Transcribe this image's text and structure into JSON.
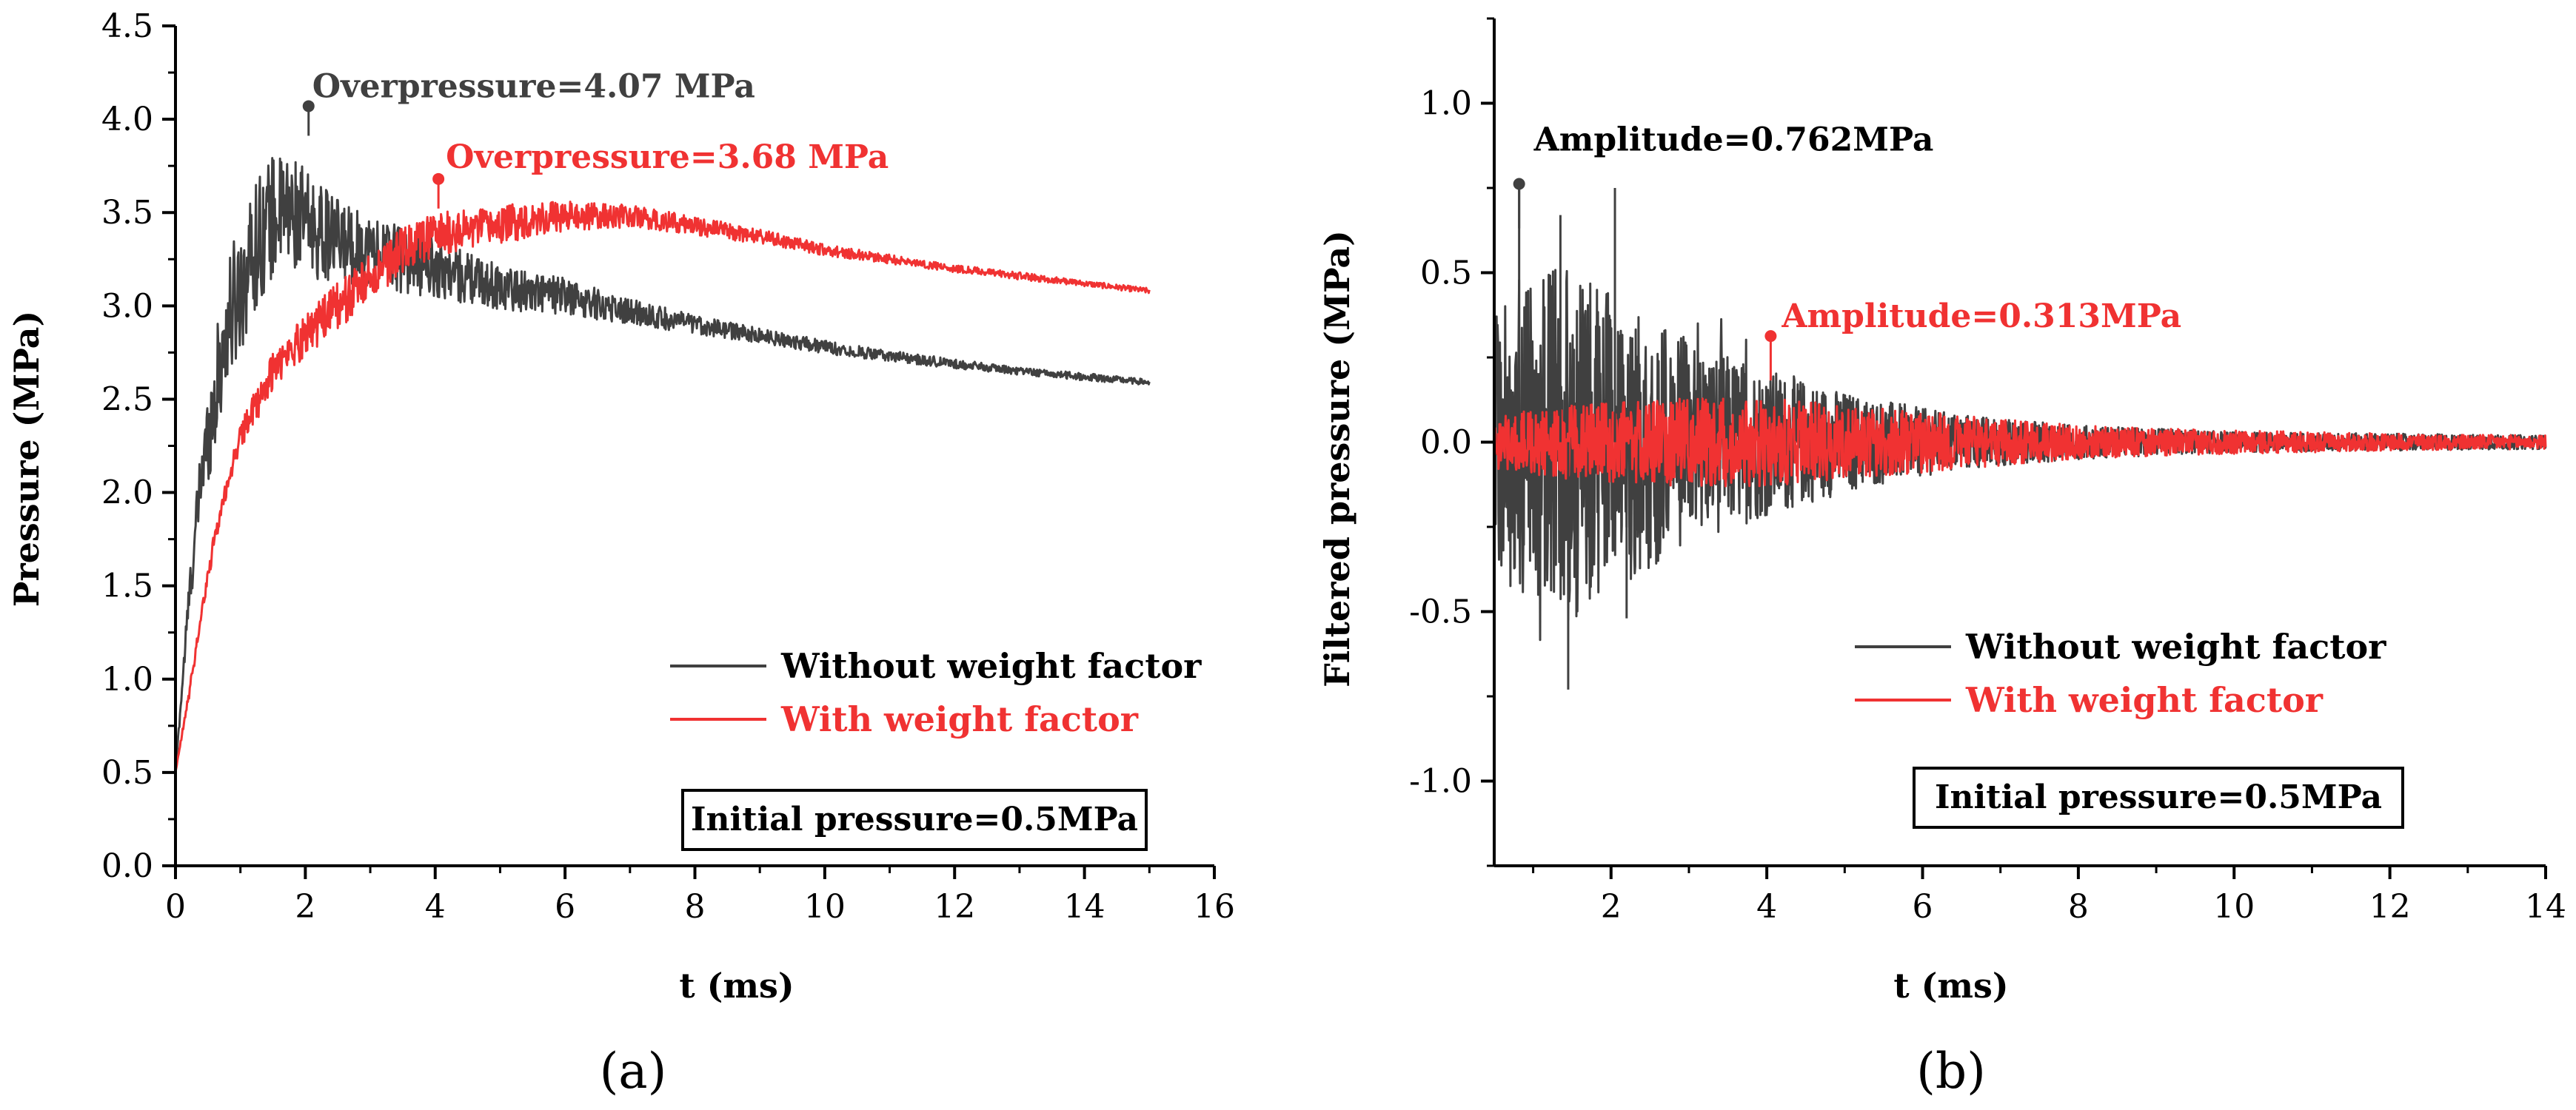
{
  "colors": {
    "series_without": "#404040",
    "series_with": "#f03232",
    "axis": "#000000"
  },
  "chart_data": [
    {
      "type": "line",
      "panel_label": "(a)",
      "xlabel": "t (ms)",
      "ylabel": "Pressure (MPa)",
      "xlim": [
        0,
        16
      ],
      "ylim": [
        0,
        4.5
      ],
      "xticks": [
        "0",
        "2",
        "4",
        "6",
        "8",
        "10",
        "12",
        "14",
        "16"
      ],
      "yticks": [
        "0.0",
        "0.5",
        "1.0",
        "1.5",
        "2.0",
        "2.5",
        "3.0",
        "3.5",
        "4.0",
        "4.5"
      ],
      "series": [
        {
          "name": "Without weight factor",
          "color": "#404040",
          "x": [
            0,
            0.2,
            0.4,
            0.6,
            0.8,
            1.0,
            1.2,
            1.4,
            1.6,
            1.8,
            2.0,
            2.2,
            2.5,
            3.0,
            3.5,
            4.0,
            5.0,
            6.0,
            7.0,
            8.0,
            9.0,
            10.0,
            11.0,
            12.0,
            13.0,
            14.0,
            15.0
          ],
          "values": [
            0.5,
            1.4,
            2.1,
            2.5,
            2.9,
            3.1,
            3.3,
            3.45,
            3.5,
            3.5,
            3.45,
            3.4,
            3.35,
            3.3,
            3.25,
            3.2,
            3.1,
            3.05,
            2.97,
            2.9,
            2.84,
            2.78,
            2.73,
            2.69,
            2.65,
            2.62,
            2.59
          ],
          "noise": [
            0,
            0.1,
            0.2,
            0.3,
            0.35,
            0.35,
            0.35,
            0.35,
            0.3,
            0.3,
            0.28,
            0.26,
            0.22,
            0.2,
            0.18,
            0.16,
            0.12,
            0.1,
            0.07,
            0.05,
            0.04,
            0.035,
            0.03,
            0.025,
            0.02,
            0.02,
            0.015
          ]
        },
        {
          "name": "With weight factor",
          "color": "#f03232",
          "x": [
            0,
            0.2,
            0.4,
            0.6,
            0.8,
            1.0,
            1.5,
            2.0,
            2.5,
            3.0,
            3.5,
            4.0,
            5.0,
            5.5,
            6.0,
            7.0,
            8.0,
            9.0,
            10.0,
            11.0,
            12.0,
            13.0,
            14.0,
            15.0
          ],
          "values": [
            0.5,
            0.9,
            1.35,
            1.75,
            2.05,
            2.3,
            2.65,
            2.85,
            3.0,
            3.15,
            3.3,
            3.38,
            3.43,
            3.47,
            3.48,
            3.48,
            3.43,
            3.37,
            3.3,
            3.25,
            3.2,
            3.16,
            3.12,
            3.08
          ],
          "noise": [
            0,
            0.03,
            0.04,
            0.05,
            0.06,
            0.08,
            0.1,
            0.12,
            0.13,
            0.13,
            0.12,
            0.12,
            0.1,
            0.1,
            0.08,
            0.06,
            0.05,
            0.04,
            0.03,
            0.025,
            0.02,
            0.02,
            0.015,
            0.015
          ]
        }
      ],
      "annotations": [
        {
          "text": "Overpressure=4.07 MPa",
          "x": 2.05,
          "y": 4.07,
          "color": "#404040"
        },
        {
          "text": "Overpressure=3.68 MPa",
          "x": 4.05,
          "y": 3.68,
          "color": "#f03232"
        }
      ],
      "legend": {
        "placement": "center-right",
        "entries": [
          "Without weight factor",
          "With weight factor"
        ]
      },
      "note": "Initial pressure=0.5MPa"
    },
    {
      "type": "line",
      "panel_label": "(b)",
      "xlabel": "t (ms)",
      "ylabel": "Filtered pressure (MPa)",
      "xlim": [
        0.5,
        14
      ],
      "ylim": [
        -1.25,
        1.25
      ],
      "xticks": [
        "2",
        "4",
        "6",
        "8",
        "10",
        "12",
        "14"
      ],
      "yticks": [
        "-1.0",
        "-0.5",
        "0.0",
        "0.5",
        "1.0"
      ],
      "series": [
        {
          "name": "Without weight factor",
          "color": "#404040",
          "x": [
            0.5,
            0.8,
            1.0,
            1.4,
            2.0,
            3.0,
            4.0,
            5.0,
            6.0,
            7.0,
            8.0,
            9.0,
            10.0,
            12.0,
            14.0
          ],
          "amplitude": [
            0.35,
            0.5,
            0.45,
            0.55,
            0.45,
            0.3,
            0.22,
            0.15,
            0.1,
            0.07,
            0.05,
            0.04,
            0.03,
            0.025,
            0.02
          ]
        },
        {
          "name": "With weight factor",
          "color": "#f03232",
          "x": [
            0.5,
            1.0,
            2.0,
            3.0,
            4.0,
            5.0,
            6.0,
            7.0,
            8.0,
            9.0,
            10.0,
            12.0,
            14.0
          ],
          "amplitude": [
            0.08,
            0.1,
            0.12,
            0.13,
            0.13,
            0.11,
            0.09,
            0.07,
            0.05,
            0.04,
            0.035,
            0.025,
            0.02
          ]
        }
      ],
      "annotations": [
        {
          "text": "Amplitude=0.762MPa",
          "x": 0.82,
          "y": 0.762,
          "color": "#404040"
        },
        {
          "text": "Amplitude=0.313MPa",
          "x": 4.05,
          "y": 0.313,
          "color": "#f03232"
        }
      ],
      "legend": {
        "placement": "center-right",
        "entries": [
          "Without weight factor",
          "With weight factor"
        ]
      },
      "note": "Initial pressure=0.5MPa"
    }
  ]
}
